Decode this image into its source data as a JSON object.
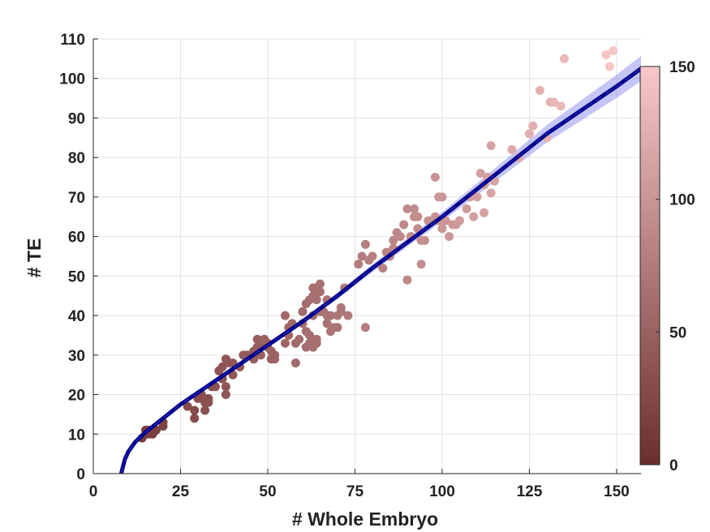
{
  "chart_data": {
    "type": "scatter",
    "xlabel": "# Whole Embryo",
    "ylabel": "# TE",
    "xlim": [
      0,
      157
    ],
    "ylim": [
      0,
      110
    ],
    "xticks": [
      0,
      25,
      50,
      75,
      100,
      125,
      150
    ],
    "yticks": [
      0,
      10,
      20,
      30,
      40,
      50,
      60,
      70,
      80,
      90,
      100,
      110
    ],
    "grid": true,
    "colorbar": {
      "range": [
        0,
        150
      ],
      "ticks": [
        0,
        50,
        100,
        150
      ],
      "color_low": "#6b2e2e",
      "color_high": "#f8c8c8",
      "placement": "right"
    },
    "fit": {
      "color": "#00008b",
      "band_color": "#5a5ae6",
      "points": [
        [
          8,
          0
        ],
        [
          9,
          3.5
        ],
        [
          10,
          5.5
        ],
        [
          12,
          8
        ],
        [
          15,
          10.5
        ],
        [
          20,
          14
        ],
        [
          25,
          17.5
        ],
        [
          30,
          20.5
        ],
        [
          40,
          26.5
        ],
        [
          50,
          32.5
        ],
        [
          60,
          38.5
        ],
        [
          70,
          45
        ],
        [
          80,
          52
        ],
        [
          90,
          58.5
        ],
        [
          100,
          65
        ],
        [
          110,
          72
        ],
        [
          120,
          79
        ],
        [
          130,
          86
        ],
        [
          140,
          92
        ],
        [
          150,
          98
        ],
        [
          157,
          102.5
        ]
      ],
      "band_halfwidth": [
        [
          8,
          0.3
        ],
        [
          50,
          0.6
        ],
        [
          100,
          1.2
        ],
        [
          130,
          2.2
        ],
        [
          157,
          3.2
        ]
      ]
    },
    "points": [
      [
        14,
        9
      ],
      [
        15,
        10
      ],
      [
        15,
        11
      ],
      [
        16,
        11
      ],
      [
        16,
        10
      ],
      [
        17,
        10
      ],
      [
        17,
        11
      ],
      [
        18,
        11
      ],
      [
        20,
        12
      ],
      [
        20,
        13
      ],
      [
        27,
        17
      ],
      [
        29,
        16
      ],
      [
        29,
        14
      ],
      [
        30,
        19
      ],
      [
        31,
        20
      ],
      [
        32,
        16
      ],
      [
        32,
        18
      ],
      [
        33,
        18
      ],
      [
        33,
        19
      ],
      [
        34,
        22
      ],
      [
        35,
        22
      ],
      [
        36,
        26
      ],
      [
        37,
        27
      ],
      [
        37,
        24
      ],
      [
        38,
        20
      ],
      [
        38,
        22
      ],
      [
        38,
        29
      ],
      [
        39,
        28
      ],
      [
        40,
        25
      ],
      [
        40,
        28
      ],
      [
        42,
        27
      ],
      [
        43,
        30
      ],
      [
        44,
        30
      ],
      [
        45,
        30
      ],
      [
        46,
        31
      ],
      [
        46,
        29
      ],
      [
        47,
        32
      ],
      [
        47,
        34
      ],
      [
        48,
        33
      ],
      [
        48,
        30
      ],
      [
        49,
        34
      ],
      [
        50,
        33
      ],
      [
        50,
        32
      ],
      [
        51,
        29
      ],
      [
        51,
        31
      ],
      [
        52,
        29
      ],
      [
        52,
        30
      ],
      [
        55,
        40
      ],
      [
        55,
        33
      ],
      [
        56,
        37
      ],
      [
        56,
        35
      ],
      [
        57,
        38
      ],
      [
        58,
        33
      ],
      [
        58,
        28
      ],
      [
        59,
        34
      ],
      [
        60,
        41
      ],
      [
        60,
        38
      ],
      [
        61,
        43
      ],
      [
        61,
        32
      ],
      [
        61,
        36
      ],
      [
        62,
        44
      ],
      [
        62,
        35
      ],
      [
        62,
        33
      ],
      [
        63,
        40
      ],
      [
        63,
        45
      ],
      [
        63,
        47
      ],
      [
        63,
        32
      ],
      [
        64,
        44
      ],
      [
        64,
        33
      ],
      [
        64,
        34
      ],
      [
        64,
        47
      ],
      [
        65,
        46
      ],
      [
        65,
        41
      ],
      [
        65,
        48
      ],
      [
        66,
        41
      ],
      [
        67,
        38
      ],
      [
        67,
        40
      ],
      [
        67,
        44
      ],
      [
        68,
        36
      ],
      [
        68,
        40
      ],
      [
        69,
        37
      ],
      [
        70,
        37
      ],
      [
        70,
        40
      ],
      [
        71,
        42
      ],
      [
        71,
        41
      ],
      [
        72,
        47
      ],
      [
        73,
        40
      ],
      [
        76,
        53
      ],
      [
        77,
        55
      ],
      [
        78,
        58
      ],
      [
        78,
        37
      ],
      [
        79,
        54
      ],
      [
        80,
        55
      ],
      [
        83,
        52
      ],
      [
        84,
        56
      ],
      [
        85,
        55
      ],
      [
        86,
        59
      ],
      [
        86,
        57
      ],
      [
        87,
        61
      ],
      [
        88,
        60
      ],
      [
        89,
        63
      ],
      [
        90,
        67
      ],
      [
        90,
        49
      ],
      [
        91,
        60
      ],
      [
        92,
        65
      ],
      [
        92,
        67
      ],
      [
        93,
        65
      ],
      [
        93,
        62
      ],
      [
        94,
        53
      ],
      [
        94,
        59
      ],
      [
        95,
        59
      ],
      [
        96,
        64
      ],
      [
        97,
        64
      ],
      [
        98,
        75
      ],
      [
        98,
        65
      ],
      [
        99,
        70
      ],
      [
        99,
        64
      ],
      [
        100,
        62
      ],
      [
        100,
        70
      ],
      [
        101,
        64
      ],
      [
        102,
        60
      ],
      [
        103,
        63
      ],
      [
        104,
        63
      ],
      [
        105,
        64
      ],
      [
        107,
        67
      ],
      [
        108,
        70
      ],
      [
        109,
        65
      ],
      [
        110,
        70
      ],
      [
        111,
        76
      ],
      [
        112,
        66
      ],
      [
        112,
        73
      ],
      [
        113,
        75
      ],
      [
        114,
        71
      ],
      [
        114,
        83
      ],
      [
        115,
        74
      ],
      [
        120,
        82
      ],
      [
        122,
        80
      ],
      [
        125,
        86
      ],
      [
        126,
        88
      ],
      [
        128,
        97
      ],
      [
        130,
        85
      ],
      [
        131,
        94
      ],
      [
        132,
        94
      ],
      [
        134,
        93
      ],
      [
        135,
        105
      ],
      [
        147,
        106
      ],
      [
        148,
        103
      ],
      [
        149,
        107
      ]
    ]
  }
}
